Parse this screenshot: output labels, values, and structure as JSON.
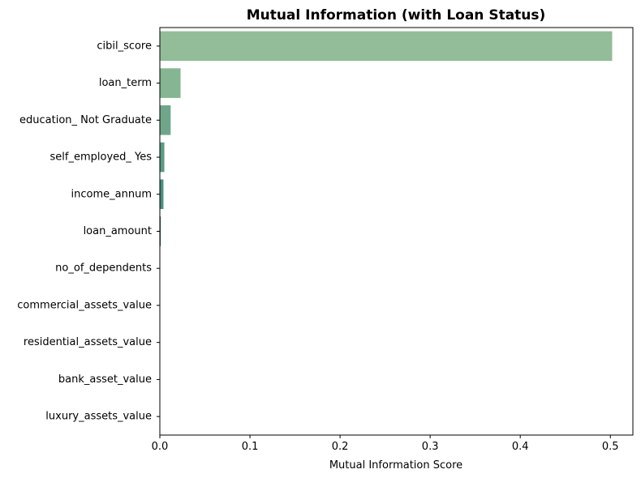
{
  "chart_data": {
    "type": "bar",
    "orientation": "horizontal",
    "title": "Mutual Information (with Loan Status)",
    "xlabel": "Mutual Information Score",
    "ylabel": "",
    "xlim": [
      0,
      0.525
    ],
    "xticks": [
      0.0,
      0.1,
      0.2,
      0.3,
      0.4,
      0.5
    ],
    "xtick_labels": [
      "0.0",
      "0.1",
      "0.2",
      "0.3",
      "0.4",
      "0.5"
    ],
    "grid": false,
    "categories": [
      "cibil_score",
      "loan_term",
      "education_ Not Graduate",
      "self_employed_ Yes",
      "income_annum",
      "loan_amount",
      "no_of_dependents",
      "commercial_assets_value",
      "residential_assets_value",
      "bank_asset_value",
      "luxury_assets_value"
    ],
    "values": [
      0.502,
      0.023,
      0.012,
      0.005,
      0.004,
      0.001,
      0.0,
      0.0,
      0.0,
      0.0,
      0.0
    ],
    "colors": [
      "#93bc98",
      "#85b592",
      "#6fa68a",
      "#5b9a83",
      "#4a8e80",
      "#2d6f6b",
      "#2a6066",
      "#26505f",
      "#234256",
      "#203649",
      "#1d2b3c"
    ]
  }
}
